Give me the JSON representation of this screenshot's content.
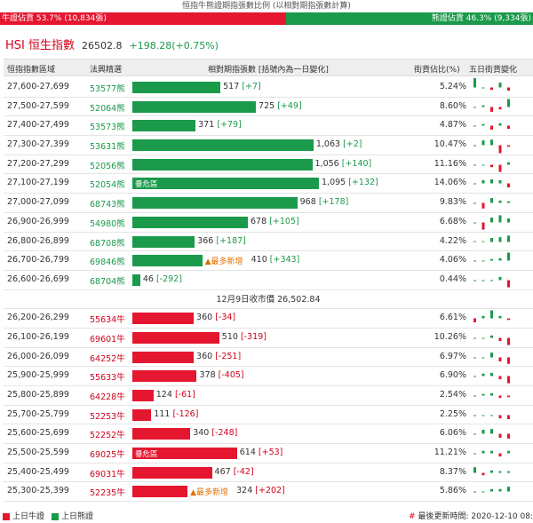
{
  "title": "恒指牛熊證期指張數比例 (以相對期指張數計算)",
  "ratio": {
    "bull_label": "牛證佔貨 53.7% (10,834張)",
    "bear_label": "熊證佔貨 46.3% (9,334張)",
    "bull_pct": 53.7,
    "bear_pct": 46.3,
    "bull_color": "#e5162f",
    "bear_color": "#1a9a4a"
  },
  "index": {
    "name": "HSI 恒生指數",
    "value": "26502.8",
    "change": "+198.28(+0.75%)"
  },
  "headers": {
    "range": "恒指指數區域",
    "code": "法興精選",
    "contracts": "相對期指張數 [括號內為一日變化]",
    "pct": "街貨佔比(%)",
    "five_day": "五日街貨變化"
  },
  "max_contracts": 1095,
  "bear_rows": [
    {
      "range": "27,600-27,699",
      "code": "53577熊",
      "contracts": 517,
      "value": "517",
      "change": "[+7]",
      "tag": "",
      "pct": "5.24%",
      "spark": [
        2,
        0,
        -0.3,
        0.6,
        -0.4
      ]
    },
    {
      "range": "27,500-27,599",
      "code": "52064熊",
      "contracts": 725,
      "value": "725",
      "change": "[+49]",
      "tag": "",
      "pct": "8.60%",
      "spark": [
        0,
        0.2,
        -0.6,
        -0.3,
        1
      ]
    },
    {
      "range": "27,400-27,499",
      "code": "53573熊",
      "contracts": 371,
      "value": "371",
      "change": "[+79]",
      "tag": "",
      "pct": "4.87%",
      "spark": [
        0,
        0.2,
        -0.5,
        0.3,
        -0.4
      ]
    },
    {
      "range": "27,300-27,399",
      "code": "53631熊",
      "contracts": 1063,
      "value": "1,063",
      "change": "[+2]",
      "tag": "",
      "pct": "10.47%",
      "spark": [
        0,
        0.6,
        0.7,
        -1,
        -0.2
      ]
    },
    {
      "range": "27,200-27,299",
      "code": "52056熊",
      "contracts": 1056,
      "value": "1,056",
      "change": "[+140]",
      "tag": "",
      "pct": "11.16%",
      "spark": [
        0,
        0,
        -0.3,
        -0.9,
        0.3
      ]
    },
    {
      "range": "27,100-27,199",
      "code": "52054熊",
      "contracts": 1095,
      "value": "1,095",
      "change": "[+132]",
      "tag": "垂危區",
      "pct": "14.06%",
      "spark": [
        0,
        0.4,
        0.5,
        0.4,
        -0.5
      ]
    },
    {
      "range": "27,000-27,099",
      "code": "68743熊",
      "contracts": 968,
      "value": "968",
      "change": "[+178]",
      "tag": "",
      "pct": "9.83%",
      "spark": [
        0,
        -0.7,
        0.6,
        0.3,
        0.2
      ]
    },
    {
      "range": "26,900-26,999",
      "code": "54980熊",
      "contracts": 678,
      "value": "678",
      "change": "[+105]",
      "tag": "",
      "pct": "6.68%",
      "spark": [
        0,
        -0.9,
        0.6,
        0.9,
        0.5
      ]
    },
    {
      "range": "26,800-26,899",
      "code": "68708熊",
      "contracts": 366,
      "value": "366",
      "change": "[+187]",
      "tag": "",
      "pct": "4.22%",
      "spark": [
        0.1,
        0.1,
        0.5,
        0.6,
        0.8
      ]
    },
    {
      "range": "26,700-26,799",
      "code": "69846熊",
      "contracts": 410,
      "value": "410",
      "change": "[+343]",
      "tag": "▲最多新增",
      "pct": "4.06%",
      "spark": [
        0,
        0,
        0.2,
        0.3,
        1
      ]
    },
    {
      "range": "26,600-26,699",
      "code": "68704熊",
      "contracts": 46,
      "value": "46",
      "change": "[-292]",
      "tag": "",
      "pct": "0.44%",
      "spark": [
        0,
        0,
        0,
        0.4,
        -0.9
      ]
    }
  ],
  "separator": "12月9日收市價 26,502.84",
  "bull_rows": [
    {
      "range": "26,200-26,299",
      "code": "55634牛",
      "contracts": 360,
      "value": "360",
      "change": "[-34]",
      "tag": "",
      "pct": "6.61%",
      "spark": [
        -0.5,
        0.3,
        1,
        0.3,
        -0.2
      ]
    },
    {
      "range": "26,100-26,199",
      "code": "69601牛",
      "contracts": 510,
      "value": "510",
      "change": "[-319]",
      "tag": "",
      "pct": "10.26%",
      "spark": [
        0,
        0,
        0.3,
        -0.4,
        -0.9
      ]
    },
    {
      "range": "26,000-26,099",
      "code": "64252牛",
      "contracts": 360,
      "value": "360",
      "change": "[-251]",
      "tag": "",
      "pct": "6.97%",
      "spark": [
        0,
        0,
        0.6,
        -0.5,
        -0.8
      ]
    },
    {
      "range": "25,900-25,999",
      "code": "55633牛",
      "contracts": 378,
      "value": "378",
      "change": "[-405]",
      "tag": "",
      "pct": "6.90%",
      "spark": [
        0,
        0.3,
        0.4,
        -0.4,
        -0.9
      ]
    },
    {
      "range": "25,800-25,899",
      "code": "64228牛",
      "contracts": 124,
      "value": "124",
      "change": "[-61]",
      "tag": "",
      "pct": "2.54%",
      "spark": [
        0,
        0.2,
        0.3,
        -0.3,
        -0.2
      ]
    },
    {
      "range": "25,700-25,799",
      "code": "52253牛",
      "contracts": 111,
      "value": "111",
      "change": "[-126]",
      "tag": "",
      "pct": "2.25%",
      "spark": [
        0,
        0,
        0,
        -0.4,
        -0.5
      ]
    },
    {
      "range": "25,600-25,699",
      "code": "52252牛",
      "contracts": 340,
      "value": "340",
      "change": "[-248]",
      "tag": "",
      "pct": "6.06%",
      "spark": [
        0,
        0.5,
        0.6,
        -0.5,
        -0.6
      ]
    },
    {
      "range": "25,500-25,599",
      "code": "69025牛",
      "contracts": 614,
      "value": "614",
      "change": "[+53]",
      "tag": "垂危區",
      "pct": "11.21%",
      "spark": [
        0,
        0.3,
        0.3,
        -0.4,
        0.3
      ]
    },
    {
      "range": "25,400-25,499",
      "code": "69031牛",
      "contracts": 467,
      "value": "467",
      "change": "[-42]",
      "tag": "",
      "pct": "8.37%",
      "spark": [
        0.7,
        -0.3,
        0.3,
        0.2,
        0.2
      ]
    },
    {
      "range": "25,300-25,399",
      "code": "52235牛",
      "contracts": 324,
      "value": "324",
      "change": "[+202]",
      "tag": "▲最多新增",
      "pct": "5.86%",
      "spark": [
        0,
        0,
        0.3,
        0.3,
        0.6
      ]
    }
  ],
  "legend": {
    "bull": "上日牛證",
    "bear": "上日熊證",
    "hash": "#",
    "updated": "最後更新時間: 2020-12-10 08:"
  }
}
